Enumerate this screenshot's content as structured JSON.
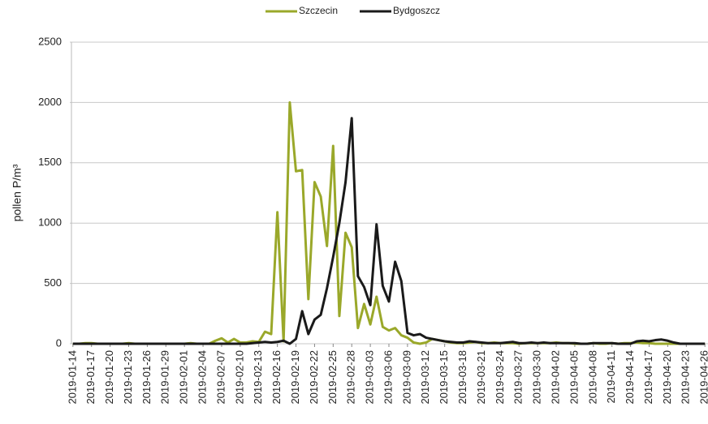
{
  "chart_data": {
    "type": "line",
    "ylabel": "pollen P/m³",
    "categories": [
      "2019-01-14",
      null,
      null,
      "2019-01-17",
      null,
      null,
      "2019-01-20",
      null,
      null,
      "2019-01-23",
      null,
      null,
      "2019-01-26",
      null,
      null,
      "2019-01-29",
      null,
      null,
      "2019-02-01",
      null,
      null,
      "2019-02-04",
      null,
      null,
      "2019-02-07",
      null,
      null,
      "2019-02-10",
      null,
      null,
      "2019-02-13",
      null,
      null,
      "2019-02-16",
      null,
      null,
      "2019-02-19",
      null,
      null,
      "2019-02-22",
      null,
      null,
      "2019-02-25",
      null,
      null,
      "2019-02-28",
      null,
      null,
      "2019-03-03",
      null,
      null,
      "2019-03-06",
      null,
      null,
      "2019-03-09",
      null,
      null,
      "2019-03-12",
      null,
      null,
      "2019-03-15",
      null,
      null,
      "2019-03-18",
      null,
      null,
      "2019-03-21",
      null,
      null,
      "2019-03-24",
      null,
      null,
      "2019-03-27",
      null,
      null,
      "2019-03-30",
      null,
      null,
      "2019-04-02",
      null,
      null,
      "2019-04-05",
      null,
      null,
      "2019-04-08",
      null,
      null,
      "2019-04-11",
      null,
      null,
      "2019-04-14",
      null,
      null,
      "2019-04-17",
      null,
      null,
      "2019-04-20",
      null,
      null,
      "2019-04-23",
      null,
      null,
      "2019-04-26"
    ],
    "series": [
      {
        "name": "Szczecin",
        "color": "#9aa82a",
        "values": [
          0,
          0,
          5,
          5,
          0,
          0,
          0,
          0,
          0,
          5,
          0,
          0,
          0,
          0,
          0,
          0,
          0,
          0,
          0,
          5,
          0,
          0,
          0,
          25,
          45,
          10,
          40,
          10,
          10,
          20,
          15,
          100,
          80,
          1090,
          20,
          2000,
          1430,
          1440,
          370,
          1340,
          1220,
          810,
          1640,
          230,
          920,
          800,
          130,
          330,
          160,
          390,
          140,
          110,
          130,
          70,
          50,
          10,
          0,
          10,
          40,
          30,
          20,
          10,
          5,
          5,
          10,
          15,
          5,
          5,
          10,
          5,
          5,
          5,
          0,
          5,
          5,
          5,
          5,
          5,
          10,
          5,
          5,
          0,
          0,
          0,
          5,
          0,
          0,
          5,
          0,
          5,
          5,
          10,
          5,
          5,
          0,
          0,
          0,
          0,
          0,
          0,
          0,
          0,
          0
        ]
      },
      {
        "name": "Bydgoszcz",
        "color": "#1a1a1a",
        "values": [
          0,
          0,
          0,
          0,
          0,
          0,
          0,
          0,
          0,
          0,
          0,
          0,
          0,
          0,
          0,
          0,
          0,
          0,
          0,
          0,
          0,
          0,
          0,
          0,
          0,
          0,
          0,
          0,
          0,
          5,
          10,
          15,
          10,
          15,
          25,
          0,
          40,
          270,
          80,
          200,
          240,
          460,
          720,
          1000,
          1340,
          1870,
          560,
          470,
          320,
          990,
          480,
          350,
          680,
          520,
          90,
          70,
          80,
          50,
          40,
          30,
          20,
          15,
          10,
          10,
          20,
          15,
          10,
          5,
          5,
          5,
          10,
          15,
          5,
          5,
          10,
          5,
          10,
          5,
          5,
          5,
          5,
          5,
          0,
          0,
          5,
          5,
          5,
          5,
          0,
          0,
          0,
          20,
          25,
          20,
          30,
          35,
          25,
          10,
          0,
          0,
          0,
          0,
          0
        ]
      }
    ],
    "ylim": [
      0,
      2500
    ],
    "yticks": [
      0,
      500,
      1000,
      1500,
      2000,
      2500
    ],
    "grid": true,
    "legend": "top"
  }
}
